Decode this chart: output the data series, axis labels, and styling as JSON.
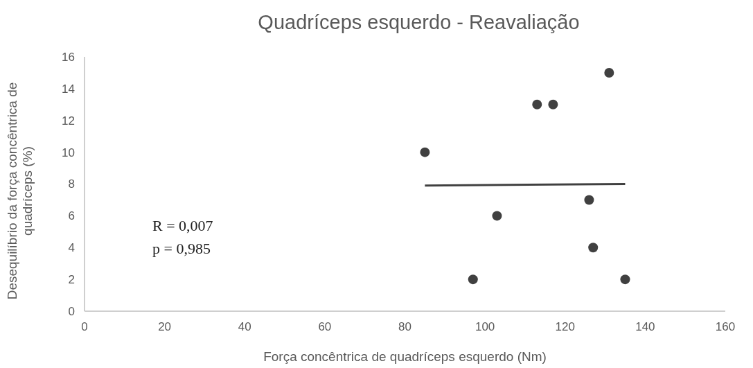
{
  "chart_data": {
    "type": "scatter",
    "title": "Quadríceps esquerdo - Reavaliação",
    "xlabel": "Força concêntrica de quadríceps esquerdo (Nm)",
    "ylabel": "Desequilíbrio da força concêntrica de quadríceps (%)",
    "annotations": [
      "R = 0,007",
      "p = 0,985"
    ],
    "series": [
      {
        "color": "#404040",
        "x": [
          85,
          97,
          103,
          113,
          117,
          131,
          126,
          127,
          135
        ],
        "values": [
          10,
          2,
          6,
          13,
          13,
          15,
          7,
          4,
          2
        ]
      },
      {
        "type": "line",
        "marker": "none",
        "color": "#404040",
        "x": [
          85,
          135
        ],
        "values": [
          7.9,
          8.0
        ]
      }
    ],
    "xlim": [
      0,
      160
    ],
    "xticks": [
      0,
      20,
      40,
      60,
      80,
      100,
      120,
      140,
      160
    ],
    "ylim": [
      0,
      16
    ],
    "yticks": [
      0,
      2,
      4,
      6,
      8,
      10,
      12,
      14,
      16
    ],
    "grid": false,
    "marker": "circle",
    "line_style": "solid"
  }
}
